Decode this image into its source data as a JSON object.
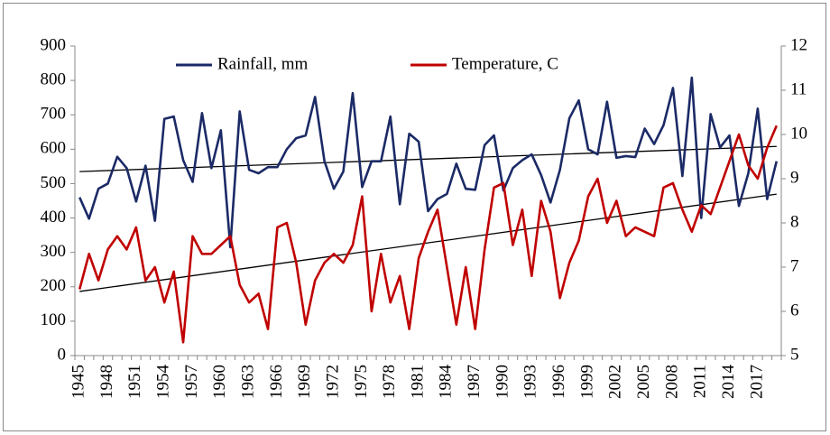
{
  "chart_data": {
    "type": "line",
    "categories": [
      "1945",
      null,
      null,
      "1948",
      null,
      null,
      "1951",
      null,
      null,
      "1954",
      null,
      null,
      "1957",
      null,
      null,
      "1960",
      null,
      null,
      "1963",
      null,
      null,
      "1966",
      null,
      null,
      "1969",
      null,
      null,
      "1972",
      null,
      null,
      "1975",
      null,
      null,
      "1978",
      null,
      null,
      "1981",
      null,
      null,
      "1984",
      null,
      null,
      "1987",
      null,
      null,
      "1990",
      null,
      null,
      "1993",
      null,
      null,
      "1996",
      null,
      null,
      "1999",
      null,
      null,
      "2002",
      null,
      null,
      "2005",
      null,
      null,
      "2008",
      null,
      null,
      "2011",
      null,
      null,
      "2014",
      null,
      null,
      "2017",
      null,
      null
    ],
    "series": [
      {
        "name": "Rainfall, mm",
        "color": "#1b2a66",
        "axis": "y",
        "values": [
          460,
          398,
          485,
          500,
          578,
          545,
          448,
          552,
          392,
          688,
          695,
          568,
          505,
          705,
          545,
          655,
          315,
          710,
          540,
          530,
          548,
          548,
          600,
          632,
          640,
          752,
          565,
          485,
          535,
          763,
          490,
          565,
          565,
          695,
          440,
          645,
          622,
          420,
          455,
          470,
          558,
          485,
          482,
          612,
          640,
          480,
          545,
          568,
          585,
          525,
          445,
          540,
          690,
          742,
          600,
          585,
          738,
          575,
          580,
          577,
          660,
          615,
          670,
          778,
          522,
          808,
          400,
          702,
          605,
          640,
          435,
          530,
          718,
          455,
          565
        ]
      },
      {
        "name": "Temperature, C",
        "color": "#c00000",
        "axis": "y2",
        "values": [
          6.5,
          7.3,
          6.7,
          7.4,
          7.7,
          7.4,
          7.9,
          6.7,
          7.0,
          6.2,
          6.9,
          5.3,
          7.7,
          7.3,
          7.3,
          7.5,
          7.7,
          6.6,
          6.2,
          6.4,
          5.6,
          7.9,
          8.0,
          7.1,
          5.7,
          6.7,
          7.1,
          7.3,
          7.1,
          7.5,
          8.6,
          6.0,
          7.3,
          6.2,
          6.8,
          5.6,
          7.2,
          7.8,
          8.3,
          7.0,
          5.7,
          7.0,
          5.6,
          7.4,
          8.8,
          8.9,
          7.5,
          8.3,
          6.8,
          8.5,
          7.8,
          6.3,
          7.1,
          7.6,
          8.6,
          9.0,
          8.0,
          8.5,
          7.7,
          7.9,
          7.8,
          7.7,
          8.8,
          8.9,
          8.3,
          7.8,
          8.4,
          8.2,
          8.8,
          9.4,
          10.0,
          9.3,
          9.0,
          9.7,
          10.2
        ]
      }
    ],
    "trendlines": [
      {
        "axis": "y",
        "color": "#000000",
        "values": [
          535,
          608
        ]
      },
      {
        "axis": "y2",
        "color": "#000000",
        "values": [
          6.45,
          8.65
        ]
      }
    ],
    "ylim": [
      0,
      900
    ],
    "yticks": [
      0,
      100,
      200,
      300,
      400,
      500,
      600,
      700,
      800,
      900
    ],
    "y2lim": [
      5,
      12
    ],
    "y2ticks": [
      5,
      6,
      7,
      8,
      9,
      10,
      11,
      12
    ],
    "grid": false,
    "legend": "top"
  }
}
